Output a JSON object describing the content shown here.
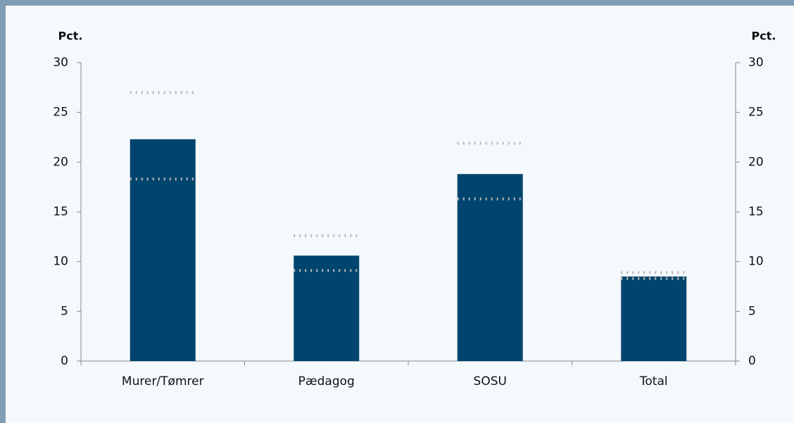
{
  "chart_data": {
    "type": "bar",
    "y_label": "Pct.",
    "y2_label": "Pct.",
    "categories": [
      "Murer/Tømrer",
      "Pædagog",
      "SOSU",
      "Total"
    ],
    "values": [
      22.3,
      10.6,
      18.8,
      8.5
    ],
    "upper": [
      27,
      12.6,
      21.9,
      8.9
    ],
    "lower": [
      18.3,
      9.1,
      16.3,
      8.3
    ],
    "color": "#00456e",
    "interval_color": "#b8b8b8",
    "ylim": [
      0,
      30
    ],
    "yticks": [
      0,
      5,
      10,
      15,
      20,
      25,
      30
    ],
    "y2lim": [
      0,
      30
    ],
    "y2ticks": [
      0,
      5,
      10,
      15,
      20,
      25,
      30
    ]
  }
}
